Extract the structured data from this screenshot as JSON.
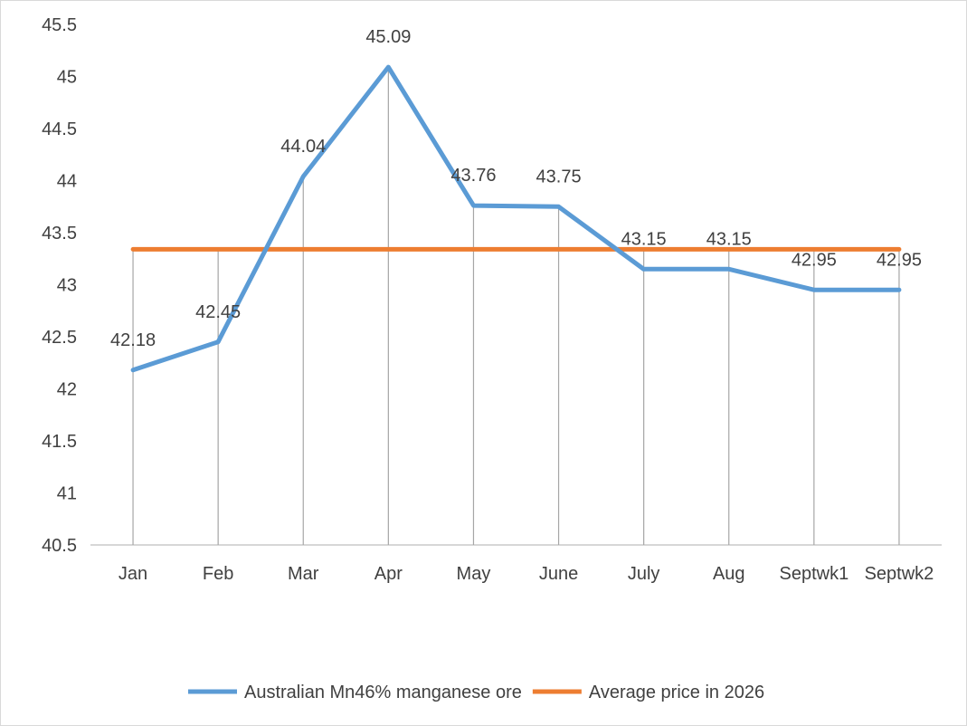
{
  "chart_data": {
    "type": "line",
    "categories": [
      "Jan",
      "Feb",
      "Mar",
      "Apr",
      "May",
      "June",
      "July",
      "Aug",
      "Septwk1",
      "Septwk2"
    ],
    "series": [
      {
        "name": "Australian Mn46% manganese ore",
        "values": [
          42.18,
          42.45,
          44.04,
          45.09,
          43.76,
          43.75,
          43.15,
          43.15,
          42.95,
          42.95
        ],
        "labels": [
          "42.18",
          "42.45",
          "44.04",
          "45.09",
          "43.76",
          "43.75",
          "43.15",
          "43.15",
          "42.95",
          "42.95"
        ],
        "color": "#5b9bd5"
      },
      {
        "name": "Average price in 2026",
        "values": [
          43.34,
          43.34,
          43.34,
          43.34,
          43.34,
          43.34,
          43.34,
          43.34,
          43.34,
          43.34
        ],
        "color": "#ed7d31"
      }
    ],
    "y_ticks": [
      "40.5",
      "41",
      "41.5",
      "42",
      "42.5",
      "43",
      "43.5",
      "44",
      "44.5",
      "45",
      "45.5"
    ],
    "ylim": [
      40.5,
      45.5
    ],
    "title": "",
    "xlabel": "",
    "ylabel": "",
    "drop_lines": true,
    "legend_position": "bottom",
    "grid": false
  }
}
